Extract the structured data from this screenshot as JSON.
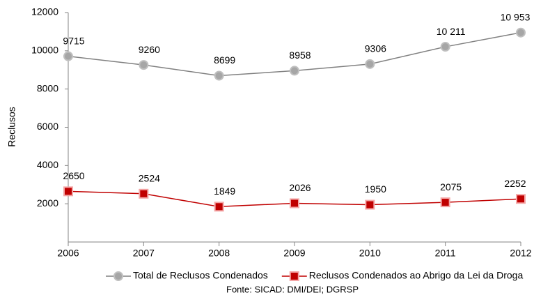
{
  "chart_data": {
    "type": "line",
    "y_label": "Reclusos",
    "source": "Fonte: SICAD: DMI/DEI; DGRSP",
    "x": [
      2006,
      2007,
      2008,
      2009,
      2010,
      2011,
      2012
    ],
    "xlim": [
      2006,
      2012
    ],
    "xticks": [
      2006,
      2007,
      2008,
      2009,
      2010,
      2011,
      2012
    ],
    "ylim": [
      0,
      12000
    ],
    "yticks": [
      2000,
      4000,
      6000,
      8000,
      10000,
      12000
    ],
    "grid": false,
    "legend": "bottom",
    "series": [
      {
        "name": "Total de Reclusos Condenados",
        "color": "#808080",
        "marker": "circle",
        "values": [
          9715,
          9260,
          8699,
          8958,
          9306,
          10211,
          10953
        ],
        "value_labels": [
          "9715",
          "9260",
          "8699",
          "8958",
          "9306",
          "10 211",
          "10 953"
        ]
      },
      {
        "name": "Reclusos Condenados ao Abrigo da Lei da Droga",
        "color": "#c00000",
        "marker": "square",
        "values": [
          2650,
          2524,
          1849,
          2026,
          1950,
          2075,
          2252
        ]
      }
    ]
  }
}
